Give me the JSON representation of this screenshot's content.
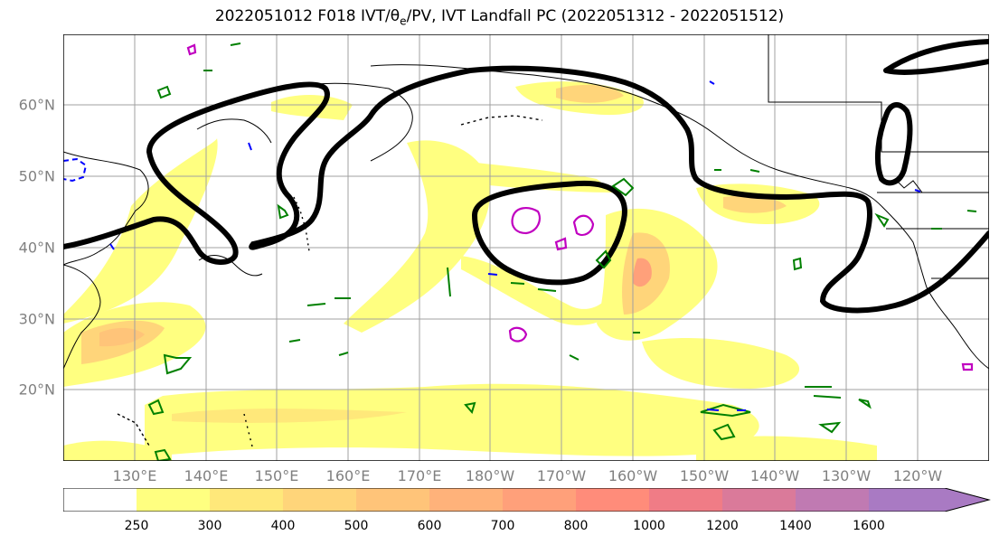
{
  "title": "2022051012 F018 IVT/θ",
  "title_sub": "e",
  "title_rest": "/PV, IVT Landfall PC (2022051312 - 2022051512)",
  "lat_labels": [
    "60°N",
    "50°N",
    "40°N",
    "30°N",
    "20°N"
  ],
  "lon_labels": [
    "130°E",
    "140°E",
    "150°E",
    "160°E",
    "170°E",
    "180°W",
    "170°W",
    "160°W",
    "150°W",
    "140°W",
    "130°W",
    "120°W"
  ],
  "colorbar": {
    "ticks": [
      "250",
      "300",
      "400",
      "500",
      "600",
      "700",
      "800",
      "1000",
      "1200",
      "1400",
      "1600"
    ],
    "colors": [
      "#ffffff",
      "#ffff80",
      "#ffe87a",
      "#ffd57a",
      "#ffc479",
      "#ffb27a",
      "#ffa07a",
      "#ff8c7a",
      "#f07c86",
      "#da7a9a",
      "#c07ab2",
      "#a97ac3"
    ]
  },
  "colors": {
    "ivt_light": "#ffff80",
    "ivt_mid": "#ffd57a",
    "ivt_high": "#ffa07a",
    "pc_contour": "#000000",
    "pv_green": "#008000",
    "pv_magenta": "#c000c0",
    "pv_blue": "#0000ff",
    "grid": "#a0a0a0"
  }
}
